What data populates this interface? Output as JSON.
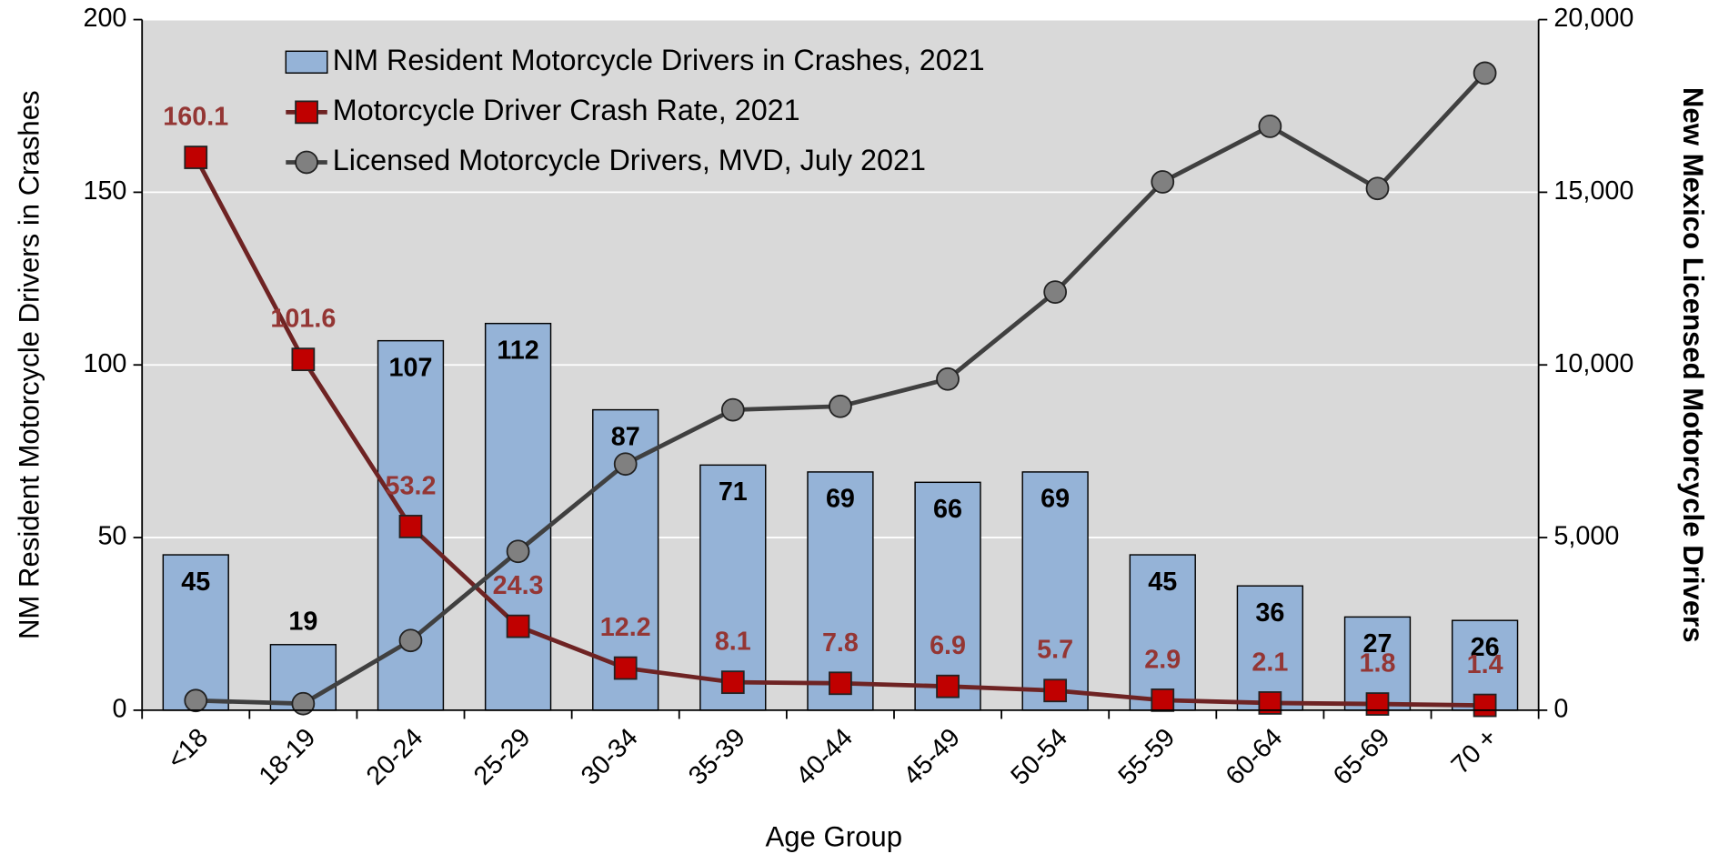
{
  "chart_data": {
    "type": "bar_line",
    "xlabel": "Age Group",
    "ylabel": "NM Resident Motorcycle Drivers in Crashes",
    "y2label": "New Mexico Licensed Motorcycle Drivers",
    "categories": [
      "<18",
      "18-19",
      "20-24",
      "25-29",
      "30-34",
      "35-39",
      "40-44",
      "45-49",
      "50-54",
      "55-59",
      "60-64",
      "65-69",
      "70 +"
    ],
    "series": [
      {
        "name": "NM Resident Motorcycle Drivers in Crashes, 2021",
        "type": "bar",
        "color": "#95b3d7",
        "values": [
          45,
          19,
          107,
          112,
          87,
          71,
          69,
          66,
          69,
          45,
          36,
          27,
          26
        ]
      },
      {
        "name": "Motorcycle Driver Crash Rate, 2021",
        "type": "line",
        "color": "#6e2323",
        "marker_color": "#c00000",
        "label_color": "#943634",
        "values": [
          160.1,
          101.6,
          53.2,
          24.3,
          12.2,
          8.1,
          7.8,
          6.9,
          5.7,
          2.9,
          2.1,
          1.8,
          1.4
        ]
      },
      {
        "name": "Licensed Motorcycle Drivers, MVD, July 2021",
        "type": "line",
        "axis": "y2",
        "color": "#404040",
        "marker_color": "#808080",
        "values": [
          280,
          190,
          2020,
          4600,
          7130,
          8700,
          8800,
          9590,
          12110,
          15300,
          16910,
          15110,
          18450
        ]
      }
    ],
    "ylim": [
      0,
      200
    ],
    "yticks": [
      0,
      50,
      100,
      150,
      200
    ],
    "y2lim": [
      0,
      20000
    ],
    "y2ticks": [
      0,
      {
        "value": 5000,
        "label": "5,000"
      },
      {
        "value": 10000,
        "label": "10,000"
      },
      {
        "value": 15000,
        "label": "15,000"
      },
      {
        "value": 20000,
        "label": "20,000"
      }
    ],
    "grid": true,
    "legend": "upper left"
  }
}
